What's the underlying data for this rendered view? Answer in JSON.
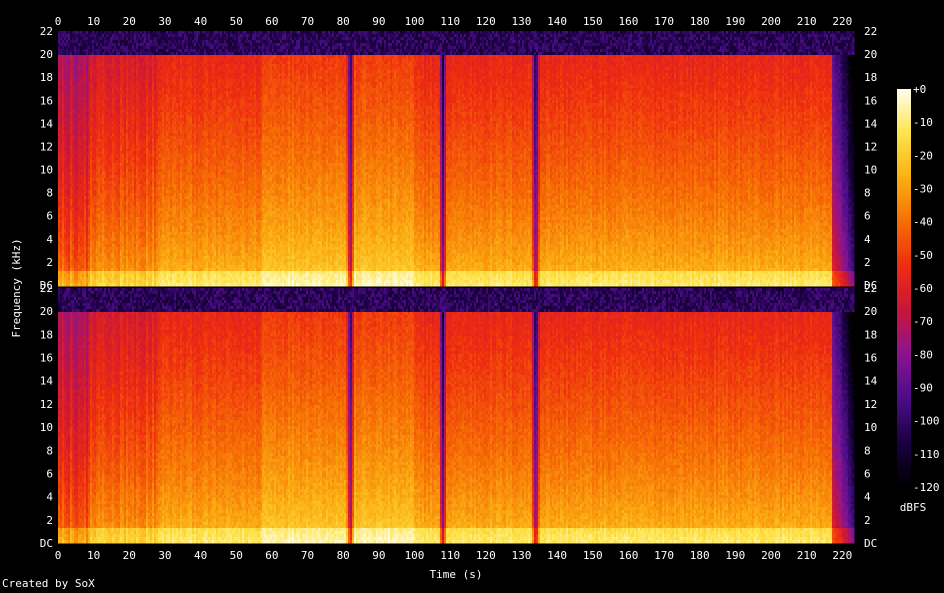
{
  "chart_data": {
    "type": "heatmap",
    "title": "",
    "xlabel": "Time (s)",
    "ylabel": "Frequency (kHz)",
    "colorbar_label": "dBFS",
    "x_ticks": [
      "0",
      "10",
      "20",
      "30",
      "40",
      "50",
      "60",
      "70",
      "80",
      "90",
      "100",
      "110",
      "120",
      "130",
      "140",
      "150",
      "160",
      "170",
      "180",
      "190",
      "200",
      "210",
      "220"
    ],
    "xlim": [
      0,
      223
    ],
    "channels": [
      {
        "y_ticks": [
          "DC",
          "2",
          "4",
          "6",
          "8",
          "10",
          "12",
          "14",
          "16",
          "18",
          "20",
          "22"
        ],
        "ylim": [
          0,
          22
        ]
      },
      {
        "y_ticks": [
          "DC",
          "2",
          "4",
          "6",
          "8",
          "10",
          "12",
          "14",
          "16",
          "18",
          "20",
          "22"
        ],
        "ylim": [
          0,
          22
        ]
      }
    ],
    "colorbar_ticks": [
      "+0",
      "-10",
      "-20",
      "-30",
      "-40",
      "-50",
      "-60",
      "-70",
      "-80",
      "-90",
      "-100",
      "-110",
      "-120"
    ],
    "colorbar_range": [
      -120,
      0
    ],
    "bandwidth_cutoff_khz": 20,
    "dropouts_s": [
      82,
      108,
      134
    ],
    "colormap": [
      "#000000",
      "#1a0040",
      "#4b0d87",
      "#8a1390",
      "#c8163a",
      "#ee2c10",
      "#f66d05",
      "#fbb014",
      "#fde34a",
      "#fffff0"
    ]
  },
  "footer": {
    "credit": "Created by SoX"
  }
}
